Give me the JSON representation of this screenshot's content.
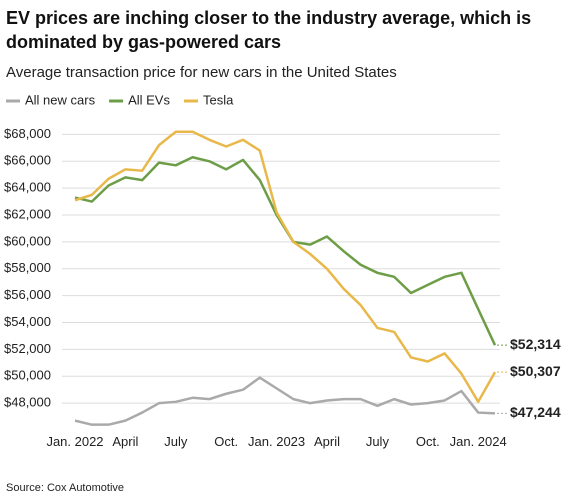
{
  "chart_data": {
    "type": "line",
    "title": "EV prices are inching closer to the industry average, which is dominated by gas-powered cars",
    "subtitle": "Average transaction price for new cars in the United States",
    "source": "Source: Cox Automotive",
    "categories": [
      "Jan. 2022",
      null,
      null,
      "April",
      null,
      null,
      "July",
      null,
      null,
      "Oct.",
      null,
      null,
      "Jan. 2023",
      null,
      null,
      "April",
      null,
      null,
      "July",
      null,
      null,
      "Oct.",
      null,
      null,
      "Jan. 2024",
      null
    ],
    "series": [
      {
        "name": "All new cars",
        "color": "#aaaaaa",
        "label_color": "#8a8a8a",
        "values": [
          46700,
          46400,
          46400,
          46700,
          47300,
          48000,
          48100,
          48400,
          48300,
          48700,
          49000,
          49900,
          49100,
          48300,
          48000,
          48200,
          48300,
          48300,
          47800,
          48300,
          47900,
          48000,
          48200,
          48900,
          47300,
          47244
        ],
        "value_labels": [
          null,
          null,
          null,
          null,
          null,
          null,
          null,
          null,
          null,
          null,
          null,
          null,
          null,
          null,
          null,
          null,
          null,
          null,
          null,
          null,
          null,
          null,
          null,
          null,
          null,
          "$47,244"
        ]
      },
      {
        "name": "All EVs",
        "color": "#6d9e47",
        "label_color": "#5a8a35",
        "values": [
          63300,
          63000,
          64200,
          64800,
          64600,
          65900,
          65700,
          66300,
          66000,
          65400,
          66100,
          64600,
          62000,
          60000,
          59800,
          60400,
          59300,
          58300,
          57700,
          57400,
          56200,
          56800,
          57400,
          57700,
          55000,
          52314
        ],
        "value_labels": [
          null,
          null,
          null,
          null,
          null,
          null,
          null,
          null,
          null,
          null,
          null,
          null,
          null,
          null,
          null,
          null,
          null,
          null,
          null,
          null,
          null,
          null,
          null,
          null,
          null,
          "$52,314"
        ]
      },
      {
        "name": "Tesla",
        "color": "#e8b84a",
        "label_color": "#a8801f",
        "values": [
          63100,
          63500,
          64700,
          65400,
          65300,
          67200,
          68200,
          68200,
          67600,
          67100,
          67600,
          66800,
          62200,
          60000,
          59100,
          58000,
          56500,
          55300,
          53600,
          53300,
          51400,
          51100,
          51700,
          50200,
          48100,
          50307
        ],
        "value_labels": [
          null,
          null,
          null,
          null,
          null,
          null,
          null,
          null,
          null,
          null,
          null,
          null,
          null,
          null,
          null,
          null,
          null,
          null,
          null,
          null,
          null,
          null,
          null,
          null,
          null,
          "$50,307"
        ]
      }
    ],
    "ylim": [
      46300,
      68700
    ],
    "yticks": [
      {
        "value": 48000,
        "label": "$48,000"
      },
      {
        "value": 50000,
        "label": "$50,000"
      },
      {
        "value": 52000,
        "label": "$52,000"
      },
      {
        "value": 54000,
        "label": "$54,000"
      },
      {
        "value": 56000,
        "label": "$56,000"
      },
      {
        "value": 58000,
        "label": "$58,000"
      },
      {
        "value": 60000,
        "label": "$60,000"
      },
      {
        "value": 62000,
        "label": "$62,000"
      },
      {
        "value": 64000,
        "label": "$64,000"
      },
      {
        "value": 66000,
        "label": "$66,000"
      },
      {
        "value": 68000,
        "label": "$68,000"
      }
    ],
    "grid": true
  }
}
